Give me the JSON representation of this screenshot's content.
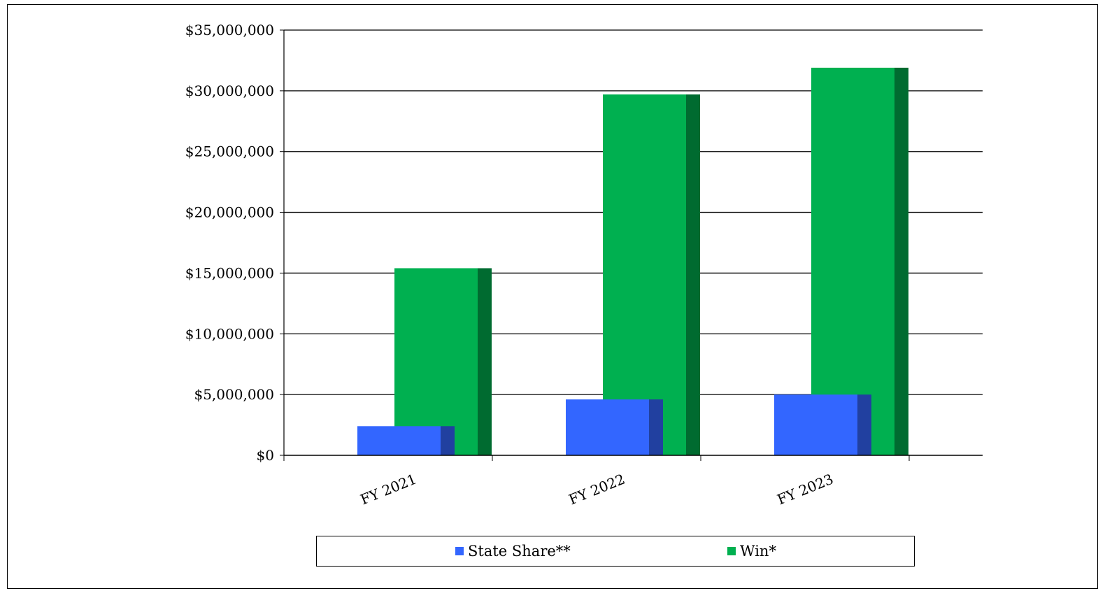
{
  "chart_data": {
    "type": "bar",
    "categories": [
      "FY 2021",
      "FY 2022",
      "FY 2023"
    ],
    "series": [
      {
        "name": "State Share**",
        "values": [
          2400000,
          4600000,
          5000000
        ],
        "color": "#3366ff"
      },
      {
        "name": "Win*",
        "values": [
          15400000,
          29700000,
          31900000
        ],
        "color": "#00b050"
      }
    ],
    "ylim": [
      0,
      35000000
    ],
    "yticks": [
      0,
      5000000,
      10000000,
      15000000,
      20000000,
      25000000,
      30000000,
      35000000
    ],
    "ytick_labels": [
      "$0",
      "$5,000,000",
      "$10,000,000",
      "$15,000,000",
      "$20,000,000",
      "$25,000,000",
      "$30,000,000",
      "$35,000,000"
    ],
    "grid": true,
    "legend": "bottom",
    "title": "",
    "xlabel": "",
    "ylabel": ""
  },
  "legend": {
    "items": [
      {
        "label": "State Share**",
        "color": "#3366ff"
      },
      {
        "label": "Win*",
        "color": "#00b050"
      }
    ]
  }
}
